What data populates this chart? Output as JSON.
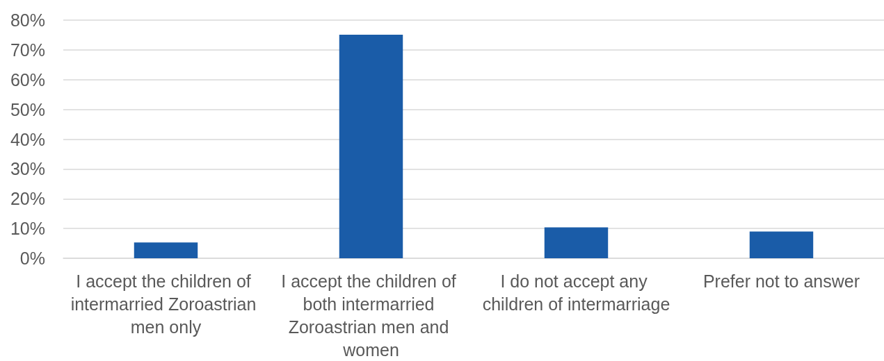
{
  "chart_data": {
    "type": "bar",
    "categories": [
      "I accept the children of intermarried Zoroastrian men only",
      "I accept the children of both intermarried Zoroastrian men and women",
      "I do not accept any children of intermarriage",
      "Prefer not to answer"
    ],
    "values": [
      5.3,
      75.1,
      10.4,
      9.0
    ],
    "color": "#1a5ca8",
    "ylim": [
      0,
      80
    ],
    "yticks": [
      {
        "value": 0,
        "label": "0%"
      },
      {
        "value": 10,
        "label": "10%"
      },
      {
        "value": 20,
        "label": "20%"
      },
      {
        "value": 30,
        "label": "30%"
      },
      {
        "value": 40,
        "label": "40%"
      },
      {
        "value": 50,
        "label": "50%"
      },
      {
        "value": 60,
        "label": "60%"
      },
      {
        "value": 70,
        "label": "70%"
      },
      {
        "value": 80,
        "label": "80%"
      }
    ],
    "grid": "y"
  }
}
